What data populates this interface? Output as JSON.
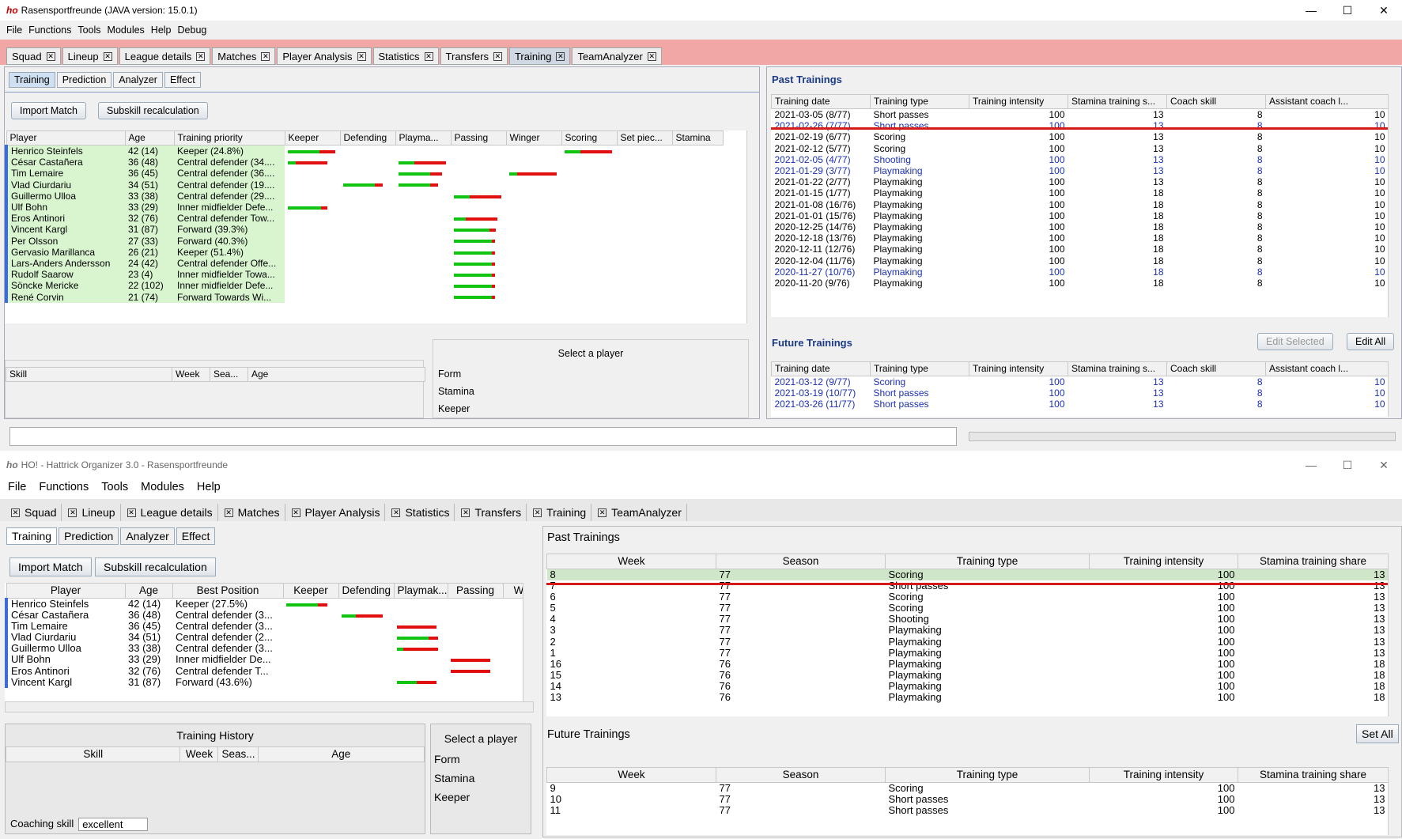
{
  "top": {
    "title": "Rasensportfreunde (JAVA version: 15.0.1)",
    "logo": "ho",
    "menu": [
      "File",
      "Functions",
      "Tools",
      "Modules",
      "Help",
      "Debug"
    ],
    "tabs": [
      "Squad",
      "Lineup",
      "League details",
      "Matches",
      "Player Analysis",
      "Statistics",
      "Transfers",
      "Training",
      "TeamAnalyzer"
    ],
    "subtabs": [
      "Training",
      "Prediction",
      "Analyzer",
      "Effect"
    ],
    "buttons": {
      "import": "Import Match",
      "subskill": "Subskill recalculation"
    },
    "player_cols": [
      "Player",
      "Age",
      "Training priority",
      "Keeper",
      "Defending",
      "Playma...",
      "Passing",
      "Winger",
      "Scoring",
      "Set piec...",
      "Stamina"
    ],
    "players": [
      {
        "name": "Henrico Steinfels",
        "age": "42 (14)",
        "prio": "Keeper (24.8%)"
      },
      {
        "name": "César Castañera",
        "age": "36 (48)",
        "prio": "Central defender (34...."
      },
      {
        "name": "Tim Lemaire",
        "age": "36 (45)",
        "prio": "Central defender (36...."
      },
      {
        "name": "Vlad Ciurdariu",
        "age": "34 (51)",
        "prio": "Central defender (19...."
      },
      {
        "name": "Guillermo Ulloa",
        "age": "33 (38)",
        "prio": "Central defender (29...."
      },
      {
        "name": "Ulf Bohn",
        "age": "33 (29)",
        "prio": "Inner midfielder Defe..."
      },
      {
        "name": "Eros Antinori",
        "age": "32 (76)",
        "prio": "Central defender Tow..."
      },
      {
        "name": "Vincent Kargl",
        "age": "31 (87)",
        "prio": "Forward (39.3%)"
      },
      {
        "name": "Per Olsson",
        "age": "27 (33)",
        "prio": "Forward (40.3%)"
      },
      {
        "name": "Gervasio Marillanca",
        "age": "26 (21)",
        "prio": "Keeper (51.4%)"
      },
      {
        "name": "Lars-Anders Andersson",
        "age": "24 (42)",
        "prio": "Central defender Offe..."
      },
      {
        "name": "Rudolf Saarow",
        "age": "23 (4)",
        "prio": "Inner midfielder Towa..."
      },
      {
        "name": "Söncke Mericke",
        "age": "22 (102)",
        "prio": "Inner midfielder Defe..."
      },
      {
        "name": "René Corvin",
        "age": "21 (74)",
        "prio": "Forward Towards Wi..."
      }
    ],
    "skill_cols": [
      "Skill",
      "Week",
      "Sea...",
      "Age"
    ],
    "select_player": "Select a player",
    "select_items": [
      "Form",
      "Stamina",
      "Keeper"
    ],
    "past_title": "Past Trainings",
    "future_title": "Future Trainings",
    "past_cols": [
      "Training date",
      "Training type",
      "Training intensity",
      "Stamina training s...",
      "Coach skill",
      "Assistant coach l..."
    ],
    "past_rows": [
      [
        "2021-03-05 (8/77)",
        "Short passes",
        "100",
        "13",
        "8",
        "10"
      ],
      [
        "2021-02-26 (7/77)",
        "Short passes",
        "100",
        "13",
        "8",
        "10"
      ],
      [
        "2021-02-19 (6/77)",
        "Scoring",
        "100",
        "13",
        "8",
        "10"
      ],
      [
        "2021-02-12 (5/77)",
        "Scoring",
        "100",
        "13",
        "8",
        "10"
      ],
      [
        "2021-02-05 (4/77)",
        "Shooting",
        "100",
        "13",
        "8",
        "10"
      ],
      [
        "2021-01-29 (3/77)",
        "Playmaking",
        "100",
        "13",
        "8",
        "10"
      ],
      [
        "2021-01-22 (2/77)",
        "Playmaking",
        "100",
        "13",
        "8",
        "10"
      ],
      [
        "2021-01-15 (1/77)",
        "Playmaking",
        "100",
        "18",
        "8",
        "10"
      ],
      [
        "2021-01-08 (16/76)",
        "Playmaking",
        "100",
        "18",
        "8",
        "10"
      ],
      [
        "2021-01-01 (15/76)",
        "Playmaking",
        "100",
        "18",
        "8",
        "10"
      ],
      [
        "2020-12-25 (14/76)",
        "Playmaking",
        "100",
        "18",
        "8",
        "10"
      ],
      [
        "2020-12-18 (13/76)",
        "Playmaking",
        "100",
        "18",
        "8",
        "10"
      ],
      [
        "2020-12-11 (12/76)",
        "Playmaking",
        "100",
        "18",
        "8",
        "10"
      ],
      [
        "2020-12-04 (11/76)",
        "Playmaking",
        "100",
        "18",
        "8",
        "10"
      ],
      [
        "2020-11-27 (10/76)",
        "Playmaking",
        "100",
        "18",
        "8",
        "10"
      ],
      [
        "2020-11-20 (9/76)",
        "Playmaking",
        "100",
        "18",
        "8",
        "10"
      ]
    ],
    "future_rows": [
      [
        "2021-03-12 (9/77)",
        "Scoring",
        "100",
        "13",
        "8",
        "10"
      ],
      [
        "2021-03-19 (10/77)",
        "Short passes",
        "100",
        "13",
        "8",
        "10"
      ],
      [
        "2021-03-26 (11/77)",
        "Short passes",
        "100",
        "13",
        "8",
        "10"
      ]
    ],
    "edit_selected": "Edit Selected",
    "edit_all": "Edit All"
  },
  "bottom": {
    "title": "HO! - Hattrick Organizer 3.0 - Rasensportfreunde",
    "logo": "ho",
    "menu": [
      "File",
      "Functions",
      "Tools",
      "Modules",
      "Help"
    ],
    "tabs": [
      "Squad",
      "Lineup",
      "League details",
      "Matches",
      "Player Analysis",
      "Statistics",
      "Transfers",
      "Training",
      "TeamAnalyzer"
    ],
    "subtabs": [
      "Training",
      "Prediction",
      "Analyzer",
      "Effect"
    ],
    "buttons": {
      "import": "Import Match",
      "subskill": "Subskill recalculation"
    },
    "player_cols": [
      "Player",
      "Age",
      "Best Position",
      "Keeper",
      "Defending",
      "Playmak...",
      "Passing",
      "W"
    ],
    "players": [
      {
        "name": "Henrico Steinfels",
        "age": "42 (14)",
        "pos": "Keeper (27.5%)"
      },
      {
        "name": "César Castañera",
        "age": "36 (48)",
        "pos": "Central defender (3..."
      },
      {
        "name": "Tim Lemaire",
        "age": "36 (45)",
        "pos": "Central defender (3..."
      },
      {
        "name": "Vlad Ciurdariu",
        "age": "34 (51)",
        "pos": "Central defender (2..."
      },
      {
        "name": "Guillermo Ulloa",
        "age": "33 (38)",
        "pos": "Central defender (3..."
      },
      {
        "name": "Ulf Bohn",
        "age": "33 (29)",
        "pos": "Inner midfielder De..."
      },
      {
        "name": "Eros Antinori",
        "age": "32 (76)",
        "pos": "Central defender T..."
      },
      {
        "name": "Vincent Kargl",
        "age": "31 (87)",
        "pos": "Forward (43.6%)"
      }
    ],
    "history_title": "Training History",
    "skill_cols": [
      "Skill",
      "Week",
      "Seas...",
      "Age"
    ],
    "coaching_label": "Coaching skill",
    "coaching_value": "excellent",
    "select_player": "Select a player",
    "select_items": [
      "Form",
      "Stamina",
      "Keeper"
    ],
    "past_title": "Past Trainings",
    "future_title": "Future Trainings",
    "set_all": "Set All",
    "cols": [
      "Week",
      "Season",
      "Training type",
      "Training intensity",
      "Stamina training share"
    ],
    "past_rows": [
      [
        "8",
        "77",
        "Scoring",
        "100",
        "13"
      ],
      [
        "7",
        "77",
        "Short passes",
        "100",
        "13"
      ],
      [
        "6",
        "77",
        "Scoring",
        "100",
        "13"
      ],
      [
        "5",
        "77",
        "Scoring",
        "100",
        "13"
      ],
      [
        "4",
        "77",
        "Shooting",
        "100",
        "13"
      ],
      [
        "3",
        "77",
        "Playmaking",
        "100",
        "13"
      ],
      [
        "2",
        "77",
        "Playmaking",
        "100",
        "13"
      ],
      [
        "1",
        "77",
        "Playmaking",
        "100",
        "13"
      ],
      [
        "16",
        "76",
        "Playmaking",
        "100",
        "18"
      ],
      [
        "15",
        "76",
        "Playmaking",
        "100",
        "18"
      ],
      [
        "14",
        "76",
        "Playmaking",
        "100",
        "18"
      ],
      [
        "13",
        "76",
        "Playmaking",
        "100",
        "18"
      ]
    ],
    "future_rows": [
      [
        "9",
        "77",
        "Scoring",
        "100",
        "13"
      ],
      [
        "10",
        "77",
        "Short passes",
        "100",
        "13"
      ],
      [
        "11",
        "77",
        "Short passes",
        "100",
        "13"
      ]
    ]
  },
  "colors": {
    "tabbar": "#f2a7a7",
    "accent": "#1b3a8a",
    "highlight": "#d61919"
  }
}
